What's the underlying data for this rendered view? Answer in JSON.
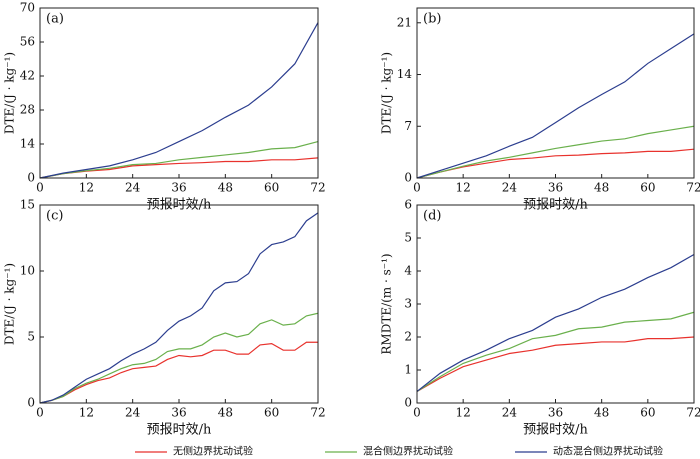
{
  "chart_data": [
    {
      "type": "line",
      "title": "(a)",
      "x_label": "预报时效/h",
      "y_label": "DTE/(J · kg⁻¹)",
      "x": [
        0,
        6,
        12,
        18,
        24,
        30,
        36,
        42,
        48,
        54,
        60,
        66,
        72
      ],
      "xlim": [
        0,
        72
      ],
      "xticks": [
        0,
        12,
        24,
        36,
        48,
        60,
        72
      ],
      "ylim": [
        0,
        70
      ],
      "yticks": [
        0,
        14,
        28,
        42,
        56,
        70
      ],
      "series": [
        {
          "name": "无侧边界扰动试验",
          "color": "#e8322d",
          "values": [
            0,
            1.8,
            2.8,
            3.5,
            5,
            5.5,
            6,
            6.3,
            6.8,
            6.8,
            7.5,
            7.5,
            8.3
          ]
        },
        {
          "name": "混合侧边界扰动试验",
          "color": "#6ab04c",
          "values": [
            0,
            1.8,
            3,
            4,
            5.5,
            6,
            7.5,
            8.5,
            9.5,
            10.5,
            12,
            12.5,
            15
          ]
        },
        {
          "name": "动态混合侧边界扰动试验",
          "color": "#2c3e8f",
          "values": [
            0,
            2,
            3.5,
            5,
            7.5,
            10.5,
            15,
            19.5,
            25,
            30,
            37.5,
            47,
            64
          ]
        }
      ]
    },
    {
      "type": "line",
      "title": "(b)",
      "x_label": "预报时效/h",
      "y_label": "DTE/(J · kg⁻¹)",
      "x": [
        0,
        6,
        12,
        18,
        24,
        30,
        36,
        42,
        48,
        54,
        60,
        66,
        72
      ],
      "xlim": [
        0,
        72
      ],
      "xticks": [
        0,
        12,
        24,
        36,
        48,
        60,
        72
      ],
      "ylim": [
        0,
        23
      ],
      "yticks": [
        0,
        7,
        14,
        21
      ],
      "series": [
        {
          "color": "#e8322d",
          "values": [
            0,
            0.8,
            1.5,
            2,
            2.5,
            2.7,
            3,
            3.1,
            3.3,
            3.4,
            3.6,
            3.6,
            3.9
          ]
        },
        {
          "color": "#6ab04c",
          "values": [
            0,
            0.8,
            1.6,
            2.3,
            2.8,
            3.4,
            4,
            4.5,
            5,
            5.3,
            6,
            6.5,
            7
          ]
        },
        {
          "color": "#2c3e8f",
          "values": [
            0,
            1,
            2,
            3,
            4.3,
            5.5,
            7.5,
            9.5,
            11.3,
            13,
            15.5,
            17.5,
            19.5
          ]
        }
      ]
    },
    {
      "type": "line",
      "title": "(c)",
      "x_label": "预报时效/h",
      "y_label": "DTE/(J · kg⁻¹)",
      "x": [
        0,
        3,
        6,
        9,
        12,
        15,
        18,
        21,
        24,
        27,
        30,
        33,
        36,
        39,
        42,
        45,
        48,
        51,
        54,
        57,
        60,
        63,
        66,
        69,
        72
      ],
      "xlim": [
        0,
        72
      ],
      "xticks": [
        0,
        12,
        24,
        36,
        48,
        60,
        72
      ],
      "ylim": [
        0,
        15
      ],
      "yticks": [
        0,
        5,
        10,
        15
      ],
      "series": [
        {
          "color": "#e8322d",
          "values": [
            0,
            0.2,
            0.5,
            1,
            1.4,
            1.7,
            1.9,
            2.3,
            2.6,
            2.7,
            2.8,
            3.3,
            3.6,
            3.5,
            3.6,
            4,
            4,
            3.7,
            3.7,
            4.4,
            4.5,
            4,
            4,
            4.6,
            4.6
          ]
        },
        {
          "color": "#6ab04c",
          "values": [
            0,
            0.2,
            0.5,
            1.1,
            1.5,
            1.8,
            2.2,
            2.6,
            2.9,
            3,
            3.3,
            3.9,
            4.1,
            4.1,
            4.4,
            5,
            5.3,
            5,
            5.2,
            6,
            6.3,
            5.9,
            6,
            6.6,
            6.8
          ]
        },
        {
          "color": "#2c3e8f",
          "values": [
            0,
            0.2,
            0.6,
            1.2,
            1.8,
            2.2,
            2.6,
            3.2,
            3.7,
            4.1,
            4.6,
            5.5,
            6.2,
            6.6,
            7.2,
            8.5,
            9.1,
            9.2,
            9.8,
            11.3,
            12,
            12.2,
            12.6,
            13.8,
            14.4
          ]
        }
      ]
    },
    {
      "type": "line",
      "title": "(d)",
      "x_label": "预报时效/h",
      "y_label": "RMDTE/(m · s⁻¹)",
      "x": [
        0,
        6,
        12,
        18,
        24,
        30,
        36,
        42,
        48,
        54,
        60,
        66,
        72
      ],
      "xlim": [
        0,
        72
      ],
      "xticks": [
        0,
        12,
        24,
        36,
        48,
        60,
        72
      ],
      "ylim": [
        0,
        6
      ],
      "yticks": [
        0,
        1,
        2,
        3,
        4,
        5,
        6
      ],
      "series": [
        {
          "color": "#e8322d",
          "values": [
            0.35,
            0.75,
            1.1,
            1.3,
            1.5,
            1.6,
            1.75,
            1.8,
            1.85,
            1.85,
            1.95,
            1.95,
            2
          ]
        },
        {
          "color": "#6ab04c",
          "values": [
            0.35,
            0.8,
            1.2,
            1.45,
            1.65,
            1.95,
            2.05,
            2.25,
            2.3,
            2.45,
            2.5,
            2.55,
            2.75
          ]
        },
        {
          "color": "#2c3e8f",
          "values": [
            0.35,
            0.9,
            1.3,
            1.6,
            1.95,
            2.2,
            2.6,
            2.85,
            3.2,
            3.45,
            3.8,
            4.1,
            4.5
          ]
        }
      ]
    }
  ]
}
